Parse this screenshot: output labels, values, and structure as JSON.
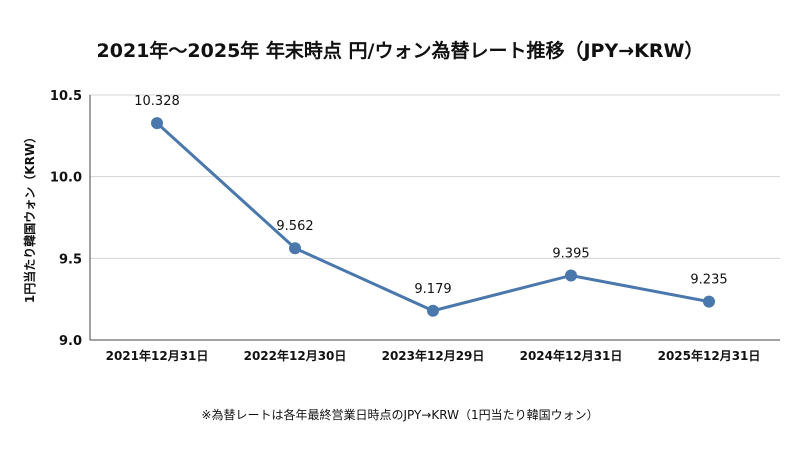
{
  "chart_data": {
    "type": "line",
    "title": "2021年〜2025年 年末時点 円/ウォン為替レート推移（JPY→KRW）",
    "ylabel": "1円当たり韓国ウォン（KRW）",
    "xlabel": "",
    "categories": [
      "2021年12月31日",
      "2022年12月30日",
      "2023年12月29日",
      "2024年12月31日",
      "2025年12月31日"
    ],
    "values": [
      10.328,
      9.562,
      9.179,
      9.395,
      9.235
    ],
    "data_labels": [
      "10.328",
      "9.562",
      "9.179",
      "9.395",
      "9.235"
    ],
    "ylim": [
      9.0,
      10.5
    ],
    "yticks": [
      "9.0",
      "9.5",
      "10.0",
      "10.5"
    ],
    "grid": true,
    "color": "#4a78ad",
    "note": "※為替レートは各年最終営業日時点のJPY→KRW（1円当たり韓国ウォン）"
  }
}
